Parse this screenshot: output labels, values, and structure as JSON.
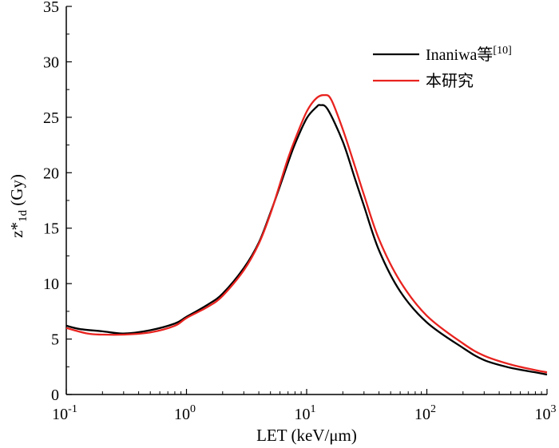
{
  "chart_data": {
    "type": "line",
    "xscale": "log",
    "xlim": [
      0.1,
      1000
    ],
    "ylim": [
      0,
      35
    ],
    "xlabel": "LET (keV/μm)",
    "ylabel": {
      "main": "z*",
      "sub": "1d",
      "unit": " (Gy)"
    },
    "x_ticks": [
      {
        "base": "10",
        "exp": "-1",
        "value": 0.1
      },
      {
        "base": "10",
        "exp": "0",
        "value": 1
      },
      {
        "base": "10",
        "exp": "1",
        "value": 10
      },
      {
        "base": "10",
        "exp": "2",
        "value": 100
      },
      {
        "base": "10",
        "exp": "3",
        "value": 1000
      }
    ],
    "y_ticks": [
      "0",
      "5",
      "10",
      "15",
      "20",
      "25",
      "30",
      "35"
    ],
    "grid": false,
    "legend_position": "top-right",
    "series": [
      {
        "name": "Inaniwa等",
        "name_sup": "[10]",
        "color": "#000000",
        "x": [
          0.1,
          0.13,
          0.2,
          0.3,
          0.5,
          0.8,
          1.0,
          1.5,
          2,
          3,
          4,
          5,
          6,
          7,
          8,
          10,
          12,
          13,
          15,
          20,
          25,
          30,
          40,
          60,
          100,
          200,
          300,
          500,
          800,
          1000
        ],
        "y": [
          6.2,
          5.9,
          5.7,
          5.5,
          5.8,
          6.4,
          7.0,
          8.1,
          9.1,
          11.4,
          13.7,
          16.4,
          18.8,
          20.9,
          22.6,
          24.9,
          25.9,
          26.1,
          25.7,
          22.8,
          19.6,
          17.0,
          13.0,
          9.3,
          6.5,
          4.2,
          3.1,
          2.4,
          2.0,
          1.8
        ]
      },
      {
        "name": "本研究",
        "color": "#e8231f",
        "x": [
          0.1,
          0.15,
          0.2,
          0.3,
          0.5,
          0.8,
          1.0,
          1.5,
          2,
          3,
          4,
          5,
          6,
          7,
          8,
          10,
          12,
          14,
          16,
          20,
          25,
          30,
          40,
          60,
          100,
          200,
          300,
          500,
          800,
          1000
        ],
        "y": [
          6.0,
          5.5,
          5.4,
          5.4,
          5.6,
          6.2,
          6.9,
          7.9,
          8.9,
          11.2,
          13.6,
          16.3,
          19.0,
          21.3,
          23.0,
          25.5,
          26.7,
          27.0,
          26.6,
          23.9,
          20.7,
          18.0,
          14.0,
          10.2,
          7.1,
          4.6,
          3.5,
          2.7,
          2.2,
          2.0
        ]
      }
    ]
  }
}
